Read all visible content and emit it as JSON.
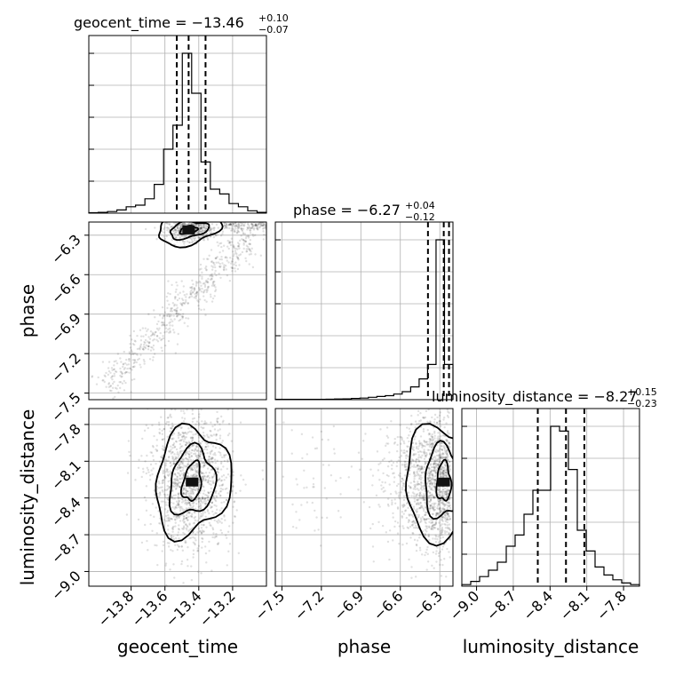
{
  "chart_data": {
    "type": "corner",
    "parameters": [
      "geocent_time",
      "phase",
      "luminosity_distance"
    ],
    "ranges": {
      "geocent_time": [
        -14.05,
        -13.0
      ],
      "phase": [
        -7.55,
        -6.2
      ],
      "luminosity_distance": [
        -9.12,
        -7.67
      ]
    },
    "ticks": {
      "geocent_time": {
        "values": [
          -13.8,
          -13.6,
          -13.4,
          -13.2
        ],
        "labels": [
          "−13.8",
          "−13.6",
          "−13.4",
          "−13.2"
        ]
      },
      "phase": {
        "values": [
          -7.5,
          -7.2,
          -6.9,
          -6.6,
          -6.3
        ],
        "labels": [
          "−7.5",
          "−7.2",
          "−6.9",
          "−6.6",
          "−6.3"
        ]
      },
      "luminosity_distance": {
        "values": [
          -9.0,
          -8.7,
          -8.4,
          -8.1,
          -7.8
        ],
        "labels": [
          "−9.0",
          "−8.7",
          "−8.4",
          "−8.1",
          "−7.8"
        ]
      }
    },
    "titles": [
      {
        "param": "geocent_time",
        "text": "geocent_time = −13.46",
        "plus": "+0.10",
        "minus": "−0.07"
      },
      {
        "param": "phase",
        "text": "phase = −6.27",
        "plus": "+0.04",
        "minus": "−0.12"
      },
      {
        "param": "luminosity_distance",
        "text": "luminosity_distance = −8.27",
        "plus": "+0.15",
        "minus": "−0.23"
      }
    ],
    "quantiles": {
      "geocent_time": [
        -13.53,
        -13.46,
        -13.36
      ],
      "phase": [
        -6.39,
        -6.27,
        -6.23
      ],
      "luminosity_distance": [
        -8.5,
        -8.27,
        -8.12
      ]
    },
    "histograms": {
      "geocent_time": [
        0.003,
        0.005,
        0.01,
        0.02,
        0.04,
        0.05,
        0.09,
        0.18,
        0.4,
        0.55,
        1.0,
        0.75,
        0.32,
        0.15,
        0.12,
        0.06,
        0.04,
        0.015,
        0.005
      ],
      "phase": [
        0.002,
        0.002,
        0.002,
        0.002,
        0.002,
        0.002,
        0.003,
        0.004,
        0.005,
        0.008,
        0.01,
        0.015,
        0.02,
        0.025,
        0.035,
        0.05,
        0.08,
        0.13,
        0.22,
        1.0,
        0.22
      ],
      "luminosity_distance": [
        0.01,
        0.03,
        0.06,
        0.1,
        0.15,
        0.25,
        0.32,
        0.45,
        0.6,
        0.6,
        1.0,
        0.97,
        0.73,
        0.35,
        0.22,
        0.12,
        0.07,
        0.04,
        0.02,
        0.01
      ]
    },
    "peaks": {
      "geocent_time_vs_phase": {
        "x": -13.46,
        "y": -6.26
      },
      "geocent_time_vs_luminosity_distance": {
        "x": -13.44,
        "y": -8.27
      },
      "phase_vs_luminosity_distance": {
        "x": -6.27,
        "y": -8.27
      }
    },
    "grid": true,
    "hist_style": "step",
    "quantile_style": "dashed"
  }
}
